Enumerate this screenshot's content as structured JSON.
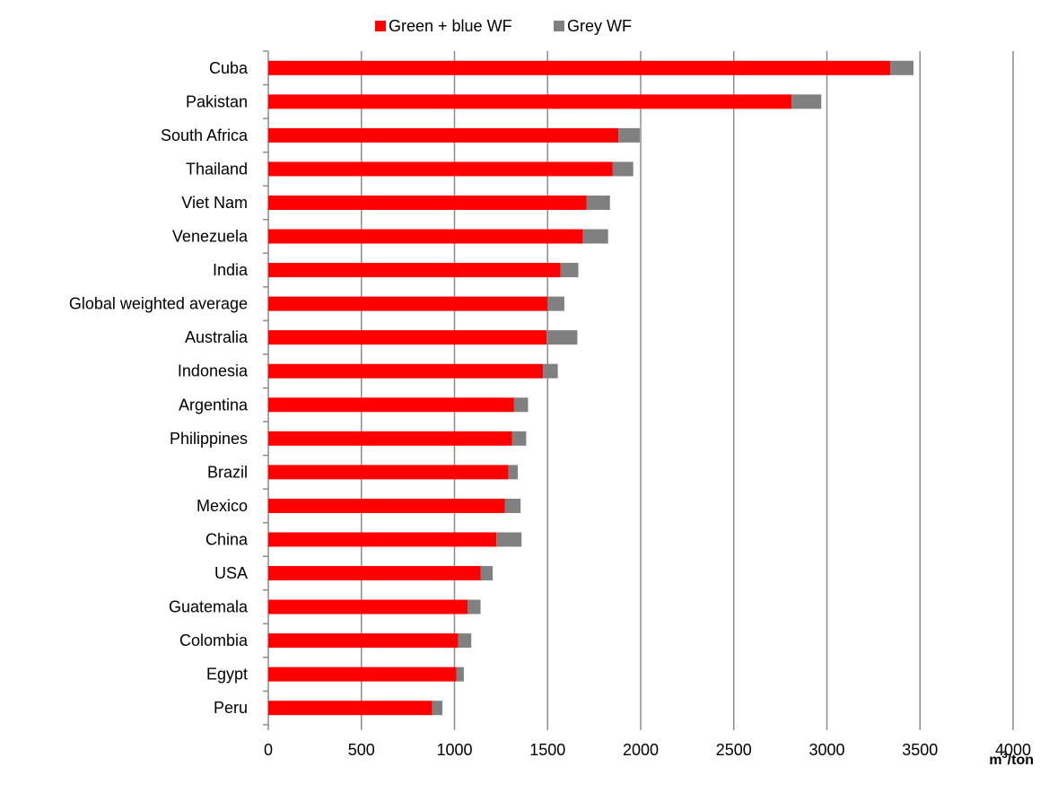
{
  "chart_data": {
    "type": "bar",
    "orientation": "horizontal",
    "stacked": true,
    "categories": [
      "Cuba",
      "Pakistan",
      "South Africa",
      "Thailand",
      "Viet Nam",
      "Venezuela",
      "India",
      "Global weighted average",
      "Australia",
      "Indonesia",
      "Argentina",
      "Philippines",
      "Brazil",
      "Mexico",
      "China",
      "USA",
      "Guatemala",
      "Colombia",
      "Egypt",
      "Peru"
    ],
    "series": [
      {
        "name": "Green + blue WF",
        "color": "#ff0000",
        "values": [
          3340,
          2810,
          1880,
          1850,
          1710,
          1690,
          1570,
          1500,
          1495,
          1475,
          1320,
          1310,
          1290,
          1270,
          1225,
          1140,
          1070,
          1020,
          1010,
          880
        ]
      },
      {
        "name": "Grey WF",
        "color": "#808080",
        "values": [
          125,
          160,
          115,
          110,
          125,
          135,
          95,
          90,
          165,
          80,
          75,
          75,
          50,
          85,
          135,
          65,
          70,
          70,
          40,
          55
        ]
      }
    ],
    "xlim": [
      0,
      4000
    ],
    "xticks": [
      "0",
      "500",
      "1000",
      "1500",
      "2000",
      "2500",
      "3000",
      "3500",
      "4000"
    ],
    "xlabel": "m³/ton",
    "ylabel": "",
    "grid": "vertical",
    "legend": "top-center"
  }
}
